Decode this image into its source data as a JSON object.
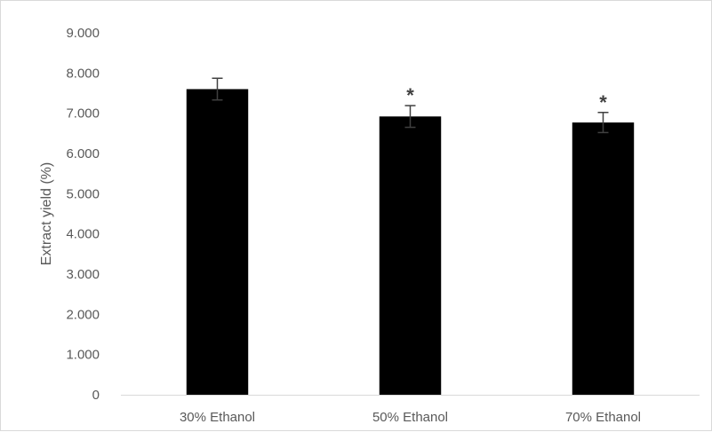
{
  "chart_data": {
    "type": "bar",
    "title": "",
    "xlabel": "",
    "ylabel": "Extract yield (%)",
    "categories": [
      "30% Ethanol",
      "50% Ethanol",
      "70% Ethanol"
    ],
    "values": [
      7.6,
      6.92,
      6.77
    ],
    "errors": [
      0.27,
      0.27,
      0.25
    ],
    "annotations": [
      "",
      "*",
      "*"
    ],
    "ylim": [
      0,
      9
    ],
    "yticks": [
      "0",
      "1.000",
      "2.000",
      "3.000",
      "4.000",
      "5.000",
      "6.000",
      "7.000",
      "8.000",
      "9.000"
    ],
    "grid": false,
    "legend": "none",
    "bar_color": "#000000",
    "error_bar_color": "#404040"
  }
}
